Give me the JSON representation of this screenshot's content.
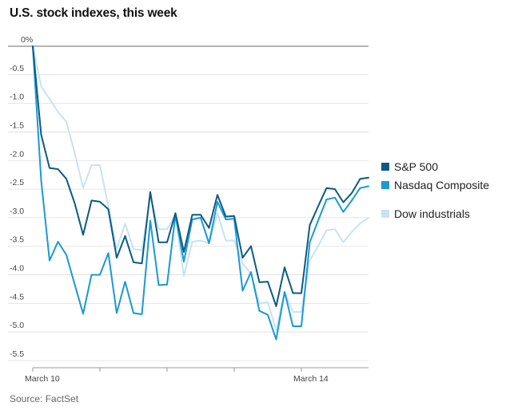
{
  "chart_data": {
    "type": "line",
    "title": "U.S. stock indexes, this week",
    "source": "Source: FactSet",
    "xlabel": "",
    "ylabel": "",
    "ylim": [
      -5.5,
      0
    ],
    "y_ticks": [
      {
        "value": 0,
        "label": "0%"
      },
      {
        "value": -0.5,
        "label": "-0.5"
      },
      {
        "value": -1.0,
        "label": "-1.0"
      },
      {
        "value": -1.5,
        "label": "-1.5"
      },
      {
        "value": -2.0,
        "label": "-2.0"
      },
      {
        "value": -2.5,
        "label": "-2.5"
      },
      {
        "value": -3.0,
        "label": "-3.0"
      },
      {
        "value": -3.5,
        "label": "-3.5"
      },
      {
        "value": -4.0,
        "label": "-4.0"
      },
      {
        "value": -4.5,
        "label": "-4.5"
      },
      {
        "value": -5.0,
        "label": "-5.0"
      },
      {
        "value": -5.5,
        "label": "-5.5"
      }
    ],
    "x_range": [
      0,
      40
    ],
    "x_day_ticks": [
      0,
      8,
      16,
      24,
      32
    ],
    "x_labels": [
      {
        "x": 0,
        "label": "March 10"
      },
      {
        "x": 32,
        "label": "March 14"
      }
    ],
    "series": [
      {
        "name": "S&P 500",
        "color": "#0b5a85",
        "x": [
          0,
          1,
          2,
          3,
          4,
          5,
          6,
          7,
          8,
          9,
          10,
          11,
          12,
          13,
          14,
          15,
          16,
          17,
          18,
          19,
          20,
          21,
          22,
          23,
          24,
          25,
          26,
          27,
          28,
          29,
          30,
          31,
          32,
          33,
          34,
          35,
          36,
          37,
          38,
          39,
          40
        ],
        "values": [
          0,
          -1.55,
          -2.13,
          -2.15,
          -2.32,
          -2.75,
          -3.3,
          -2.7,
          -2.72,
          -2.85,
          -3.7,
          -3.32,
          -3.78,
          -3.8,
          -2.55,
          -3.43,
          -3.43,
          -2.92,
          -3.6,
          -2.95,
          -2.95,
          -3.18,
          -2.6,
          -2.98,
          -2.97,
          -3.7,
          -3.5,
          -4.13,
          -4.12,
          -4.55,
          -3.87,
          -4.32,
          -4.32,
          -3.13,
          -2.8,
          -2.48,
          -2.5,
          -2.73,
          -2.57,
          -2.32,
          -2.3
        ]
      },
      {
        "name": "Nasdaq Composite",
        "color": "#1b99d3",
        "x": [
          0,
          1,
          2,
          3,
          4,
          5,
          6,
          7,
          8,
          9,
          10,
          11,
          12,
          13,
          14,
          15,
          16,
          17,
          18,
          19,
          20,
          21,
          22,
          23,
          24,
          25,
          26,
          27,
          28,
          29,
          30,
          31,
          32,
          33,
          34,
          35,
          36,
          37,
          38,
          39,
          40
        ],
        "values": [
          0,
          -2.35,
          -3.75,
          -3.42,
          -3.65,
          -4.17,
          -4.68,
          -4.0,
          -4.0,
          -3.62,
          -4.67,
          -4.12,
          -4.67,
          -4.69,
          -3.05,
          -4.18,
          -4.17,
          -2.95,
          -3.77,
          -3.03,
          -3.0,
          -3.45,
          -2.72,
          -3.03,
          -3.02,
          -4.28,
          -3.95,
          -4.63,
          -4.7,
          -5.13,
          -4.3,
          -4.9,
          -4.9,
          -3.43,
          -3.05,
          -2.68,
          -2.65,
          -2.9,
          -2.7,
          -2.48,
          -2.45
        ]
      },
      {
        "name": "Dow industrials",
        "color": "#c7e3f2",
        "x": [
          0,
          1,
          2,
          3,
          4,
          5,
          6,
          7,
          8,
          9,
          10,
          11,
          12,
          13,
          14,
          15,
          16,
          17,
          18,
          19,
          20,
          21,
          22,
          23,
          24,
          25,
          26,
          27,
          28,
          29,
          30,
          31,
          32,
          33,
          34,
          35,
          36,
          37,
          38,
          39,
          40
        ],
        "values": [
          0,
          -0.7,
          -0.92,
          -1.15,
          -1.32,
          -1.87,
          -2.48,
          -2.08,
          -2.08,
          -2.8,
          -3.55,
          -3.1,
          -3.55,
          -3.57,
          -2.62,
          -3.2,
          -3.2,
          -2.95,
          -4.02,
          -3.42,
          -3.4,
          -3.45,
          -2.92,
          -3.4,
          -3.4,
          -3.8,
          -3.98,
          -4.5,
          -4.48,
          -4.97,
          -4.3,
          -4.65,
          -4.65,
          -3.75,
          -3.5,
          -3.22,
          -3.2,
          -3.43,
          -3.25,
          -3.1,
          -3.0
        ]
      }
    ]
  }
}
